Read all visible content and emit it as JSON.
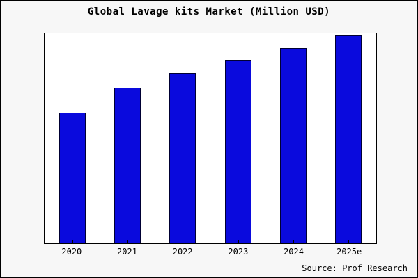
{
  "title": "Global Lavage kits Market (Million USD)",
  "source": "Source: Prof Research",
  "chart_data": {
    "type": "bar",
    "title": "Global Lavage kits Market (Million USD)",
    "categories": [
      "2020",
      "2021",
      "2022",
      "2023",
      "2024",
      "2025e"
    ],
    "values": [
      63,
      75,
      82,
      88,
      94,
      100
    ],
    "xlabel": "",
    "ylabel": "",
    "ylim": [
      0,
      101
    ],
    "grid": false,
    "legend": "none",
    "bar_color": "#0a0add",
    "bar_border_color": "#000033",
    "annotation": "Source: Prof Research"
  }
}
